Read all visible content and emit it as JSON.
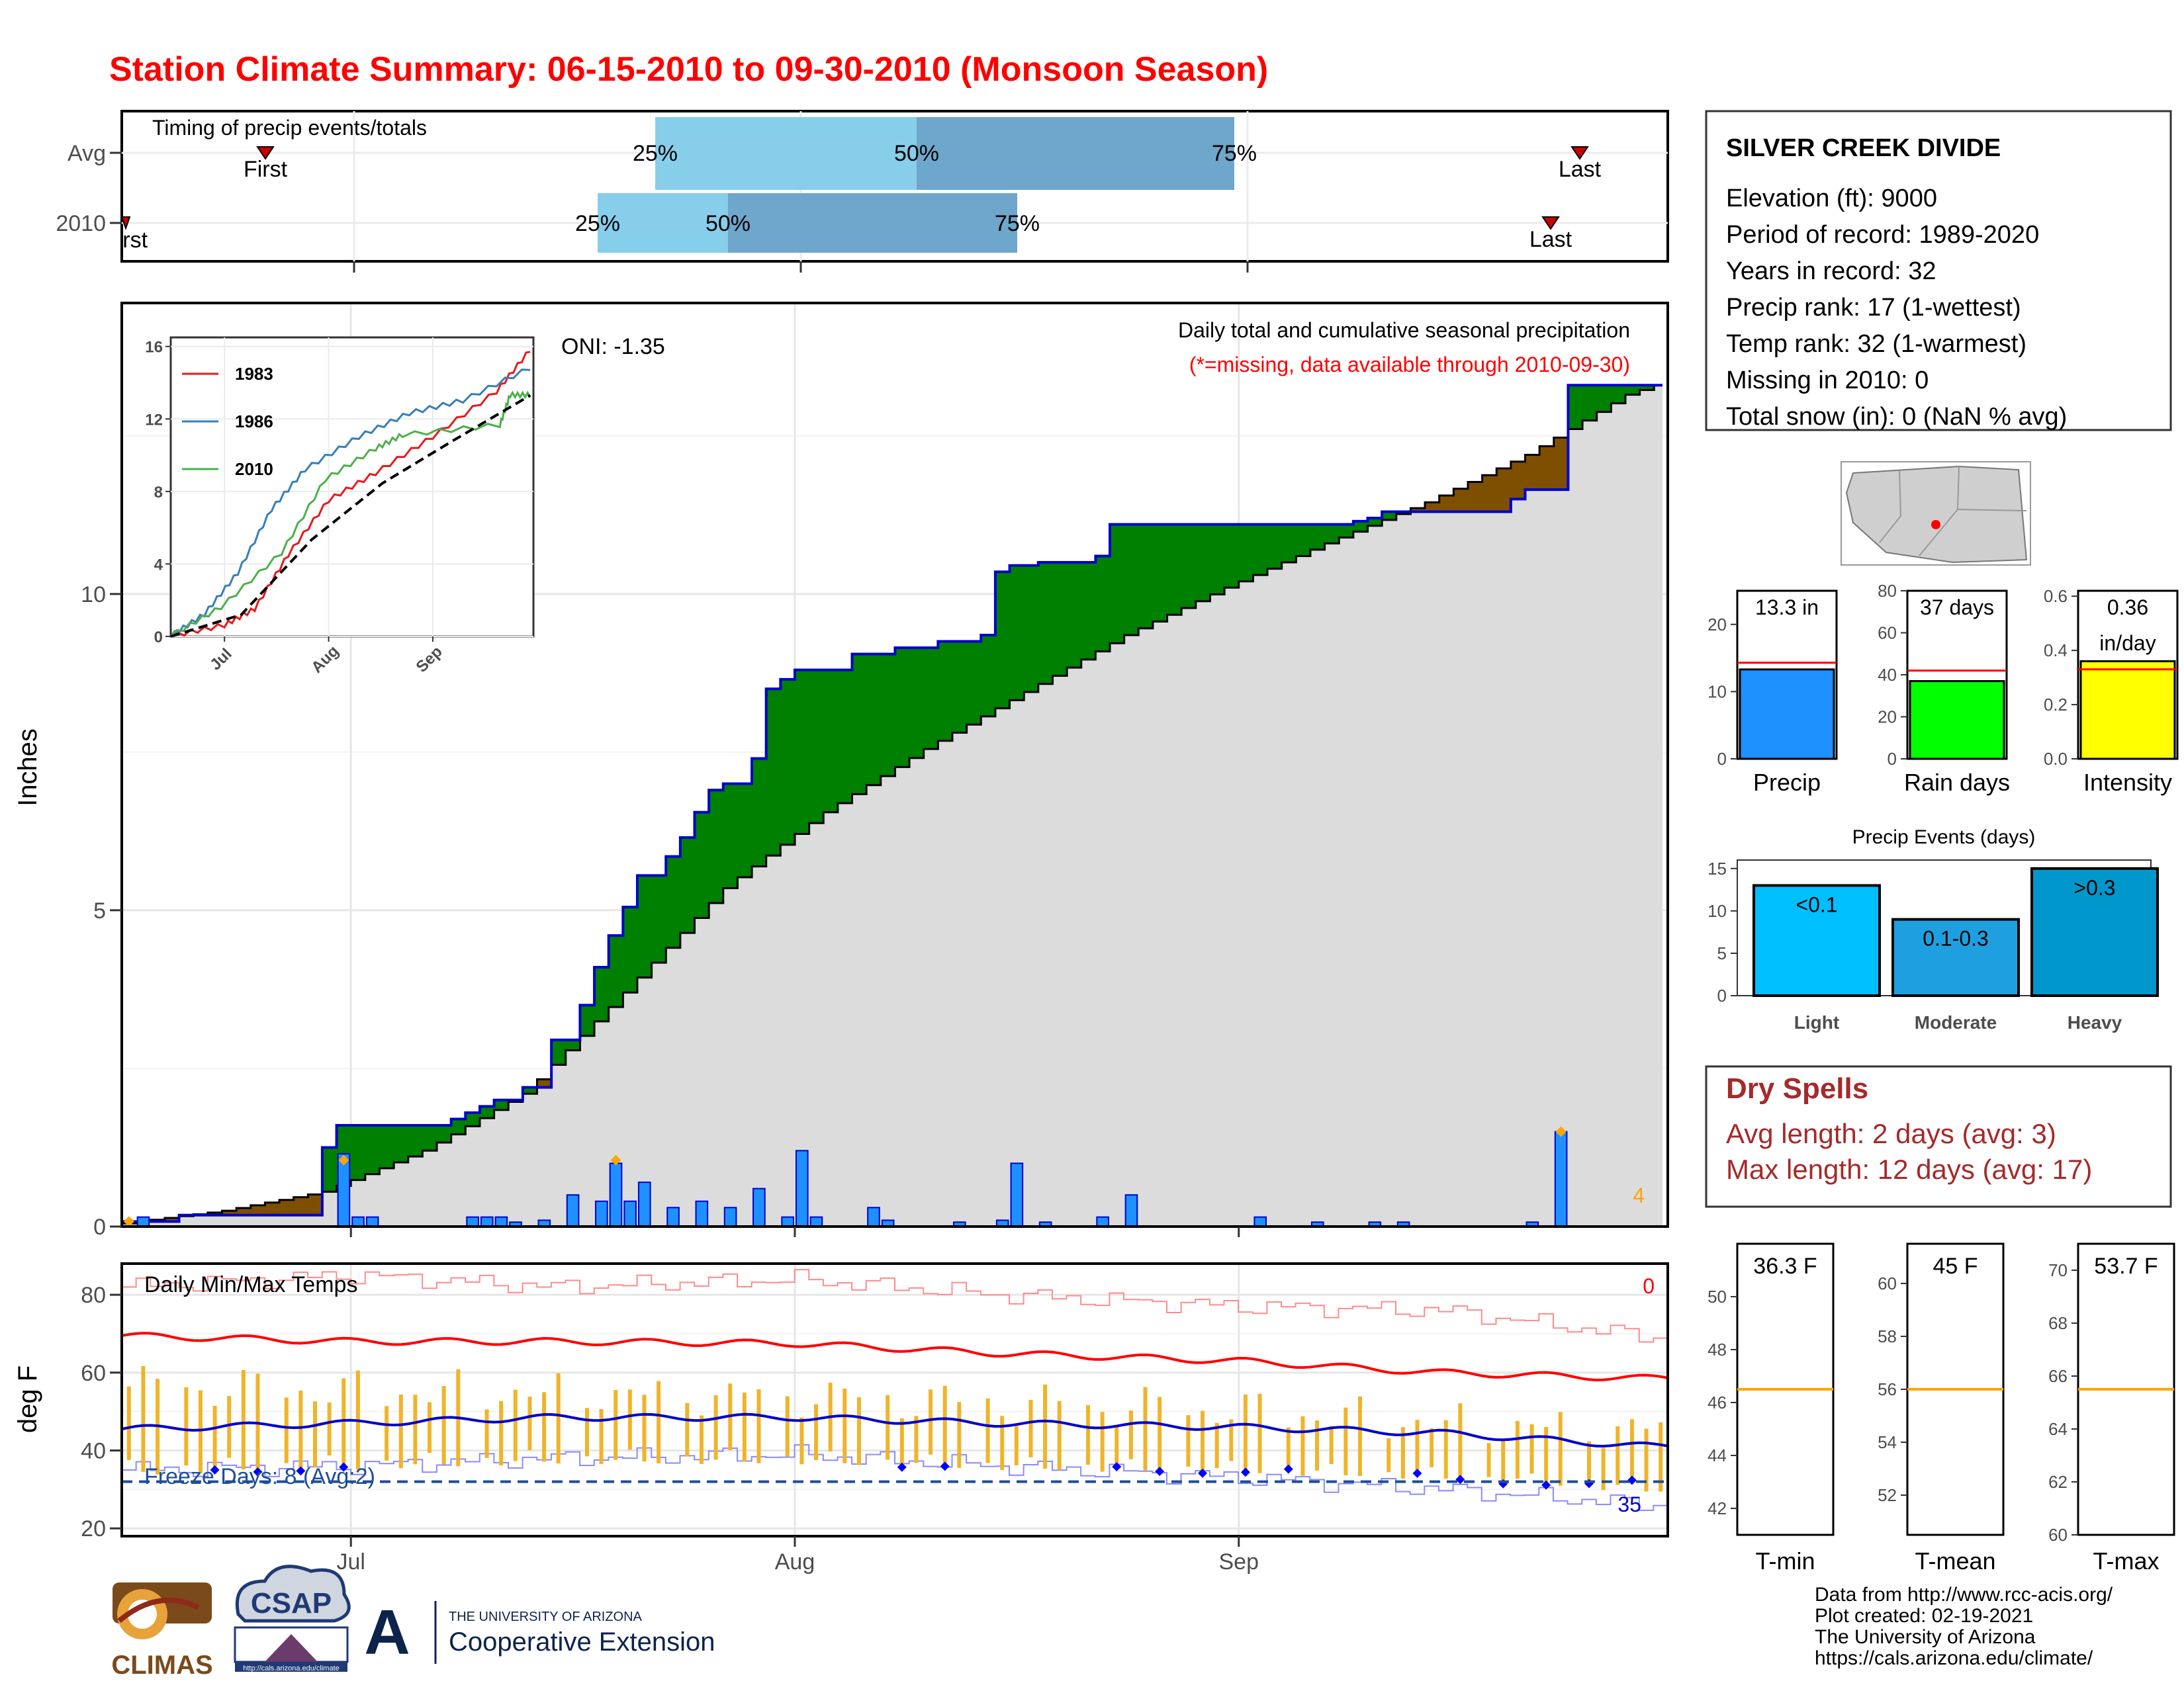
{
  "title": "Station Climate Summary: 06-15-2010 to 09-30-2010 (Monsoon Season)",
  "colors": {
    "title": "#ff0000",
    "cumulative_2010": "#008000",
    "deficit": "#7f4f00",
    "avg_fill": "#dcdcdc",
    "daily_bar": "#1e90ff",
    "outline": "#0000cd",
    "light_blue": "#87ceeb",
    "mid_blue": "#6ea6cc",
    "dry_spell": "#a52a2a",
    "tmin_bar": "#f0b429",
    "orange_line": "#ffa500"
  },
  "timing_panel": {
    "label": "Timing of precip events/totals",
    "rows": [
      "Avg",
      "2010"
    ],
    "avg": {
      "first": "First",
      "last": "Last",
      "q25": "25%",
      "q50": "50%",
      "q75": "75%"
    },
    "y2010": {
      "first": "First",
      "last": "Last",
      "q25": "25%",
      "q50": "50%",
      "q75": "75%"
    }
  },
  "x_axis": {
    "ticks": [
      "Jul",
      "Aug",
      "Sep"
    ]
  },
  "precip_panel": {
    "ylabel": "Inches",
    "yticks": [
      "0",
      "5",
      "10"
    ],
    "header": "Daily total and cumulative seasonal precipitation",
    "note": "(*=missing, data available through 2010-09-30)",
    "oni": "ONI: -1.35",
    "corner_value": "4"
  },
  "inset": {
    "yticks": [
      "0",
      "4",
      "8",
      "12",
      "16"
    ],
    "xticks": [
      "Jul",
      "Aug",
      "Sep"
    ],
    "legend": [
      {
        "name": "1983",
        "color": "#e41a1c"
      },
      {
        "name": "1986",
        "color": "#377eb8"
      },
      {
        "name": "2010",
        "color": "#4daf4a"
      }
    ]
  },
  "station_box": {
    "name": "SILVER CREEK DIVIDE",
    "lines": [
      "Elevation (ft): 9000",
      "Period of record: 1989-2020",
      "Years in record: 32",
      "Precip rank: 17 (1-wettest)",
      "Temp rank: 32 (1-warmest)",
      "Missing in 2010: 0",
      "Total snow (in): 0 (NaN % avg)"
    ]
  },
  "mini_bars": [
    {
      "label": "Precip",
      "value_text": "13.3 in",
      "value": 13.3,
      "avg": 14.3,
      "ymax": 25,
      "ticks": [
        "0",
        "10",
        "20"
      ],
      "color": "#1e90ff"
    },
    {
      "label": "Rain days",
      "value_text": "37 days",
      "value": 37,
      "avg": 42,
      "ymax": 80,
      "ticks": [
        "0",
        "20",
        "40",
        "60",
        "80"
      ],
      "color": "#00ff00"
    },
    {
      "label": "Intensity",
      "value_text": "0.36",
      "value_text2": "in/day",
      "value": 0.36,
      "avg": 0.33,
      "ymax": 0.62,
      "ticks": [
        "0.0",
        "0.2",
        "0.4",
        "0.6"
      ],
      "color": "#ffff00"
    }
  ],
  "precip_events": {
    "title": "Precip Events (days)",
    "ticks": [
      "0",
      "5",
      "10",
      "15"
    ],
    "bars": [
      {
        "category": "Light",
        "label": "<0.1",
        "value": 13,
        "color": "#00bfff"
      },
      {
        "category": "Moderate",
        "label": "0.1-0.3",
        "value": 9,
        "color": "#1ea0e0"
      },
      {
        "category": "Heavy",
        "label": ">0.3",
        "value": 15,
        "color": "#0098cc"
      }
    ]
  },
  "dry_spells": {
    "title": "Dry Spells",
    "avg": "Avg length: 2 days (avg: 3)",
    "max": "Max length: 12 days (avg: 17)"
  },
  "temp_panel": {
    "ylabel": "deg F",
    "yticks": [
      "20",
      "40",
      "60",
      "80"
    ],
    "label": "Daily Min/Max Temps",
    "freeze": "Freeze Days: 8 (Avg:2)",
    "corner_top": "0",
    "corner_bottom": "35"
  },
  "temp_bars": [
    {
      "label": "T-min",
      "value_text": "36.3 F",
      "avg": 46.5,
      "ticks": [
        "42",
        "44",
        "46",
        "48",
        "50"
      ],
      "ymin": 41,
      "ymax": 52
    },
    {
      "label": "T-mean",
      "value_text": "45 F",
      "avg": 56,
      "ticks": [
        "52",
        "54",
        "56",
        "58",
        "60"
      ],
      "ymin": 50.5,
      "ymax": 61.5
    },
    {
      "label": "T-max",
      "value_text": "53.7 F",
      "avg": 65.5,
      "ticks": [
        "60",
        "62",
        "64",
        "66",
        "68",
        "70"
      ],
      "ymin": 60,
      "ymax": 71
    }
  ],
  "footer": {
    "lines": [
      "Data from http://www.rcc-acis.org/",
      "Plot created: 02-19-2021",
      "The University of Arizona",
      "https://cals.arizona.edu/climate/"
    ],
    "logo1": "CLIMAS",
    "logo2": "CSAP",
    "logo2_url": "http://cals.arizona.edu/climate",
    "logo3_line1": "THE UNIVERSITY OF ARIZONA",
    "logo3_line2": "Cooperative Extension",
    "logo3_mark": "A"
  },
  "chart_data": [
    {
      "type": "area",
      "title": "Daily total and cumulative seasonal precipitation",
      "ylabel": "Inches",
      "ylim": [
        0,
        14.6
      ],
      "x_start": "2010-06-15",
      "x_end": "2010-09-30",
      "cumulative_2010_steps": [
        [
          "2010-06-15",
          0.08
        ],
        [
          "2010-06-19",
          0.18
        ],
        [
          "2010-06-29",
          1.25
        ],
        [
          "2010-06-30",
          1.6
        ],
        [
          "2010-07-07",
          1.6
        ],
        [
          "2010-07-08",
          1.7
        ],
        [
          "2010-07-09",
          1.8
        ],
        [
          "2010-07-10",
          1.9
        ],
        [
          "2010-07-11",
          2.0
        ],
        [
          "2010-07-13",
          2.2
        ],
        [
          "2010-07-15",
          2.95
        ],
        [
          "2010-07-17",
          3.5
        ],
        [
          "2010-07-18",
          4.1
        ],
        [
          "2010-07-19",
          4.6
        ],
        [
          "2010-07-20",
          5.05
        ],
        [
          "2010-07-21",
          5.55
        ],
        [
          "2010-07-23",
          5.85
        ],
        [
          "2010-07-24",
          6.15
        ],
        [
          "2010-07-25",
          6.55
        ],
        [
          "2010-07-26",
          6.9
        ],
        [
          "2010-07-27",
          7.0
        ],
        [
          "2010-07-29",
          7.4
        ],
        [
          "2010-07-30",
          8.5
        ],
        [
          "2010-07-31",
          8.65
        ],
        [
          "2010-08-01",
          8.8
        ],
        [
          "2010-08-05",
          9.05
        ],
        [
          "2010-08-08",
          9.15
        ],
        [
          "2010-08-11",
          9.25
        ],
        [
          "2010-08-14",
          9.35
        ],
        [
          "2010-08-15",
          10.35
        ],
        [
          "2010-08-16",
          10.45
        ],
        [
          "2010-08-18",
          10.5
        ],
        [
          "2010-08-22",
          10.6
        ],
        [
          "2010-08-23",
          11.1
        ],
        [
          "2010-09-07",
          11.1
        ],
        [
          "2010-09-09",
          11.15
        ],
        [
          "2010-09-10",
          11.2
        ],
        [
          "2010-09-11",
          11.3
        ],
        [
          "2010-09-20",
          11.5
        ],
        [
          "2010-09-21",
          11.65
        ],
        [
          "2010-09-24",
          13.3
        ],
        [
          "2010-09-30",
          13.3
        ]
      ],
      "average_cumulative": [
        [
          "2010-06-15",
          0.05
        ],
        [
          "2010-06-22",
          0.25
        ],
        [
          "2010-06-29",
          0.55
        ],
        [
          "2010-07-06",
          1.2
        ],
        [
          "2010-07-13",
          2.1
        ],
        [
          "2010-07-20",
          3.7
        ],
        [
          "2010-07-27",
          5.35
        ],
        [
          "2010-08-03",
          6.55
        ],
        [
          "2010-08-10",
          7.55
        ],
        [
          "2010-08-17",
          8.45
        ],
        [
          "2010-08-24",
          9.35
        ],
        [
          "2010-08-31",
          10.1
        ],
        [
          "2010-09-07",
          10.8
        ],
        [
          "2010-09-14",
          11.45
        ],
        [
          "2010-09-21",
          12.2
        ],
        [
          "2010-09-28",
          13.15
        ],
        [
          "2010-09-30",
          13.3
        ]
      ],
      "daily_bars": [
        [
          "2010-06-16",
          0.15
        ],
        [
          "2010-06-30",
          1.15
        ],
        [
          "2010-07-01",
          0.15
        ],
        [
          "2010-07-02",
          0.15
        ],
        [
          "2010-07-09",
          0.15
        ],
        [
          "2010-07-10",
          0.15
        ],
        [
          "2010-07-11",
          0.15
        ],
        [
          "2010-07-12",
          0.07
        ],
        [
          "2010-07-14",
          0.1
        ],
        [
          "2010-07-16",
          0.5
        ],
        [
          "2010-07-18",
          0.4
        ],
        [
          "2010-07-19",
          1.0
        ],
        [
          "2010-07-20",
          0.4
        ],
        [
          "2010-07-21",
          0.7
        ],
        [
          "2010-07-23",
          0.3
        ],
        [
          "2010-07-25",
          0.4
        ],
        [
          "2010-07-27",
          0.3
        ],
        [
          "2010-07-29",
          0.6
        ],
        [
          "2010-07-31",
          0.15
        ],
        [
          "2010-08-01",
          1.2
        ],
        [
          "2010-08-02",
          0.15
        ],
        [
          "2010-08-06",
          0.3
        ],
        [
          "2010-08-07",
          0.1
        ],
        [
          "2010-08-12",
          0.07
        ],
        [
          "2010-08-15",
          0.1
        ],
        [
          "2010-08-16",
          1.0
        ],
        [
          "2010-08-18",
          0.07
        ],
        [
          "2010-08-22",
          0.15
        ],
        [
          "2010-08-24",
          0.5
        ],
        [
          "2010-09-02",
          0.15
        ],
        [
          "2010-09-06",
          0.07
        ],
        [
          "2010-09-10",
          0.07
        ],
        [
          "2010-09-12",
          0.07
        ],
        [
          "2010-09-21",
          0.07
        ],
        [
          "2010-09-23",
          1.5
        ]
      ],
      "extreme_markers": [
        [
          "2010-06-15",
          0.08
        ],
        [
          "2010-06-30",
          1.05
        ],
        [
          "2010-07-19",
          1.05
        ],
        [
          "2010-09-23",
          1.5
        ]
      ]
    },
    {
      "type": "line",
      "title": "",
      "series": [
        {
          "name": "1983",
          "points": [
            [
              "2010-06-15",
              0
            ],
            [
              "2010-07-01",
              0.6
            ],
            [
              "2010-07-10",
              1.5
            ],
            [
              "2010-07-20",
              4.5
            ],
            [
              "2010-08-01",
              7.5
            ],
            [
              "2010-08-15",
              9
            ],
            [
              "2010-09-01",
              11
            ],
            [
              "2010-09-20",
              13.5
            ],
            [
              "2010-09-30",
              15.8
            ]
          ]
        },
        {
          "name": "1986",
          "points": [
            [
              "2010-06-15",
              0
            ],
            [
              "2010-06-25",
              1.2
            ],
            [
              "2010-07-05",
              3.5
            ],
            [
              "2010-07-15",
              7
            ],
            [
              "2010-07-25",
              9.2
            ],
            [
              "2010-08-10",
              11
            ],
            [
              "2010-08-25",
              12.3
            ],
            [
              "2010-09-10",
              13
            ],
            [
              "2010-09-30",
              14.8
            ]
          ]
        },
        {
          "name": "2010",
          "points": [
            [
              "2010-06-15",
              0
            ],
            [
              "2010-06-30",
              1.6
            ],
            [
              "2010-07-18",
              4.6
            ],
            [
              "2010-07-31",
              8.65
            ],
            [
              "2010-08-15",
              10.35
            ],
            [
              "2010-08-23",
              11.1
            ],
            [
              "2010-09-21",
              11.65
            ],
            [
              "2010-09-24",
              13.3
            ],
            [
              "2010-09-30",
              13.3
            ]
          ]
        },
        {
          "name": "Average",
          "points": [
            [
              "2010-06-15",
              0
            ],
            [
              "2010-07-06",
              1.2
            ],
            [
              "2010-07-27",
              5.35
            ],
            [
              "2010-08-17",
              8.45
            ],
            [
              "2010-09-07",
              10.8
            ],
            [
              "2010-09-30",
              13.3
            ]
          ]
        }
      ],
      "ylim": [
        0,
        16.5
      ]
    },
    {
      "type": "line",
      "title": "Daily Min/Max Temps",
      "ylabel": "deg F",
      "ylim": [
        18,
        88
      ],
      "series": [
        {
          "name": "Avg max",
          "points": [
            [
              "2010-06-15",
              69.5
            ],
            [
              "2010-07-01",
              68
            ],
            [
              "2010-07-15",
              68
            ],
            [
              "2010-08-01",
              67.5
            ],
            [
              "2010-08-15",
              65
            ],
            [
              "2010-09-01",
              63
            ],
            [
              "2010-09-15",
              60
            ],
            [
              "2010-09-30",
              58.5
            ]
          ]
        },
        {
          "name": "Avg min",
          "points": [
            [
              "2010-06-15",
              45.5
            ],
            [
              "2010-07-01",
              47
            ],
            [
              "2010-07-15",
              48.5
            ],
            [
              "2010-08-01",
              48.5
            ],
            [
              "2010-08-15",
              47
            ],
            [
              "2010-09-01",
              46
            ],
            [
              "2010-09-15",
              44.5
            ],
            [
              "2010-09-30",
              41
            ]
          ]
        },
        {
          "name": "Record max",
          "points": [
            [
              "2010-06-15",
              82
            ],
            [
              "2010-07-01",
              85
            ],
            [
              "2010-07-15",
              82
            ],
            [
              "2010-08-01",
              84
            ],
            [
              "2010-08-15",
              80
            ],
            [
              "2010-09-01",
              77
            ],
            [
              "2010-09-15",
              76
            ],
            [
              "2010-09-30",
              69
            ]
          ]
        },
        {
          "name": "Record min",
          "points": [
            [
              "2010-06-15",
              35
            ],
            [
              "2010-07-01",
              36
            ],
            [
              "2010-07-15",
              38
            ],
            [
              "2010-08-01",
              39
            ],
            [
              "2010-08-15",
              36
            ],
            [
              "2010-09-01",
              33
            ],
            [
              "2010-09-15",
              30
            ],
            [
              "2010-09-30",
              26
            ]
          ]
        }
      ],
      "freeze_line": 32
    }
  ]
}
